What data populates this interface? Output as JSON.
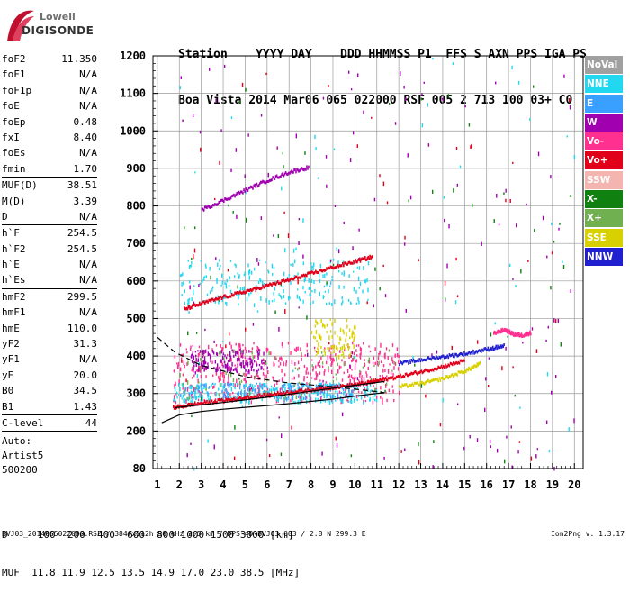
{
  "logo": {
    "line1": "Lowell",
    "line2": "DIGISONDE"
  },
  "header": {
    "row1": "Station    YYYY DAY    DDD HHMMSS P1  FFS S AXN PPS IGA PS",
    "row2": "Boa Vista 2014 Mar06 065 022000 RSF 005 2 713 100 03+ C0"
  },
  "params": [
    {
      "k": "foF2",
      "v": "11.350"
    },
    {
      "k": "foF1",
      "v": "N/A"
    },
    {
      "k": "foF1p",
      "v": "N/A"
    },
    {
      "k": "foE",
      "v": "N/A"
    },
    {
      "k": "foEp",
      "v": "0.48"
    },
    {
      "k": "fxI",
      "v": "8.40"
    },
    {
      "k": "foEs",
      "v": "N/A"
    },
    {
      "k": "fmin",
      "v": "1.70",
      "sep": true
    },
    {
      "k": "MUF(D)",
      "v": "38.51"
    },
    {
      "k": "M(D)",
      "v": "3.39"
    },
    {
      "k": "D",
      "v": "N/A",
      "sep": true
    },
    {
      "k": "h`F",
      "v": "254.5"
    },
    {
      "k": "h`F2",
      "v": "254.5"
    },
    {
      "k": "h`E",
      "v": "N/A"
    },
    {
      "k": "h`Es",
      "v": "N/A",
      "sep": true
    },
    {
      "k": "hmF2",
      "v": "299.5"
    },
    {
      "k": "hmF1",
      "v": "N/A"
    },
    {
      "k": "hmE",
      "v": "110.0"
    },
    {
      "k": "yF2",
      "v": "31.3"
    },
    {
      "k": "yF1",
      "v": "N/A"
    },
    {
      "k": "yE",
      "v": "20.0"
    },
    {
      "k": "B0",
      "v": "34.5"
    },
    {
      "k": "B1",
      "v": "1.43",
      "sep": true
    },
    {
      "k": "C-level",
      "v": "44",
      "sep": true
    }
  ],
  "auto": {
    "line1": "Auto:",
    "line2": "Artist5",
    "line3": "500200"
  },
  "muf_table": {
    "d_row": "D     100  200  400  600  800 1000 1500 3000 [km]",
    "muf_row": "MUF  11.8 11.9 12.5 13.5 14.9 17.0 23.0 38.5 [MHz]"
  },
  "footer": {
    "left": "BVJ03_2014065022000.RSF / 384fx512h 50 kHz 2.5 km / DPS-4D BVJ03 003 / 2.8 N 299.3 E",
    "right": "Ion2Png v. 1.3.17"
  },
  "legend": [
    {
      "label": "NoVal",
      "color": "#a0a0a0"
    },
    {
      "label": "NNE",
      "color": "#22d8f0"
    },
    {
      "label": "E",
      "color": "#3aa0ff"
    },
    {
      "label": "W",
      "color": "#a000b0"
    },
    {
      "label": "Vo-",
      "color": "#ff3090"
    },
    {
      "label": "Vo+",
      "color": "#e0001a"
    },
    {
      "label": "SSW",
      "color": "#f4b4b0"
    },
    {
      "label": "X-",
      "color": "#108010"
    },
    {
      "label": "X+",
      "color": "#70b050"
    },
    {
      "label": "SSE",
      "color": "#d8d000"
    },
    {
      "label": "NNW",
      "color": "#2020d0"
    }
  ],
  "chart_data": {
    "type": "scatter",
    "x_ticks": [
      "1",
      "2",
      "3",
      "4",
      "5",
      "6",
      "7",
      "8",
      "9",
      "10",
      "11",
      "12",
      "13",
      "14",
      "15",
      "16",
      "17",
      "18",
      "19",
      "20"
    ],
    "y_ticks": [
      "80",
      "200",
      "300",
      "400",
      "500",
      "600",
      "700",
      "800",
      "900",
      "1000",
      "1100",
      "1200"
    ],
    "xlim": [
      0.8,
      20.4
    ],
    "ylim": [
      80,
      1200
    ],
    "grid": true,
    "legend_position": "right",
    "y_tick_values": [
      80,
      200,
      300,
      400,
      500,
      600,
      700,
      800,
      900,
      1000,
      1100,
      1200
    ],
    "traces": [
      {
        "name": "Vo+",
        "color": "#e0001a",
        "points": [
          [
            1.7,
            262
          ],
          [
            2.5,
            270
          ],
          [
            3.5,
            278
          ],
          [
            4.5,
            285
          ],
          [
            5.5,
            292
          ],
          [
            6.5,
            300
          ],
          [
            7.5,
            306
          ],
          [
            8.5,
            313
          ],
          [
            9.5,
            320
          ],
          [
            10.5,
            328
          ],
          [
            11.0,
            334
          ],
          [
            12.0,
            345
          ],
          [
            13.0,
            358
          ],
          [
            14.0,
            372
          ],
          [
            15.0,
            388
          ]
        ]
      },
      {
        "name": "Vo+",
        "color": "#e0001a",
        "points": [
          [
            2.2,
            525
          ],
          [
            3,
            540
          ],
          [
            4,
            557
          ],
          [
            5,
            572
          ],
          [
            6,
            588
          ],
          [
            7,
            603
          ],
          [
            8,
            620
          ],
          [
            9,
            637
          ],
          [
            10,
            652
          ],
          [
            10.8,
            665
          ]
        ]
      },
      {
        "name": "W",
        "color": "#a000b0",
        "points": [
          [
            3.0,
            790
          ],
          [
            4,
            815
          ],
          [
            5,
            842
          ],
          [
            6,
            868
          ],
          [
            7,
            890
          ],
          [
            7.9,
            903
          ]
        ]
      },
      {
        "name": "NNW",
        "color": "#2020d0",
        "points": [
          [
            12.0,
            380
          ],
          [
            13,
            390
          ],
          [
            14,
            398
          ],
          [
            15,
            406
          ],
          [
            16,
            418
          ],
          [
            16.8,
            427
          ]
        ]
      },
      {
        "name": "SSE",
        "color": "#d8d000",
        "points": [
          [
            12.0,
            318
          ],
          [
            13,
            327
          ],
          [
            14,
            340
          ],
          [
            15,
            360
          ],
          [
            15.7,
            380
          ]
        ]
      },
      {
        "name": "Vo-",
        "color": "#ff3090",
        "points": [
          [
            16.3,
            460
          ],
          [
            16.8,
            470
          ],
          [
            17.2,
            458
          ],
          [
            17.6,
            455
          ],
          [
            18.0,
            462
          ]
        ]
      }
    ],
    "clusters": [
      {
        "name": "Vo-",
        "color": "#ff3090",
        "x": [
          1.7,
          12
        ],
        "y": [
          280,
          440
        ],
        "n": 500
      },
      {
        "name": "NNE",
        "color": "#22d8f0",
        "x": [
          1.7,
          11
        ],
        "y": [
          280,
          330
        ],
        "n": 300
      },
      {
        "name": "E",
        "color": "#3aa0ff",
        "x": [
          2,
          10
        ],
        "y": [
          290,
          330
        ],
        "n": 150
      },
      {
        "name": "W",
        "color": "#a000b0",
        "x": [
          2.5,
          6
        ],
        "y": [
          360,
          420
        ],
        "n": 150
      },
      {
        "name": "SSE",
        "color": "#d8d000",
        "x": [
          8,
          10
        ],
        "y": [
          400,
          500
        ],
        "n": 90
      },
      {
        "name": "NNE",
        "color": "#22d8f0",
        "x": [
          2,
          10.6
        ],
        "y": [
          540,
          660
        ],
        "n": 220
      },
      {
        "name": "X+",
        "color": "#70b050",
        "x": [
          2,
          12
        ],
        "y": [
          290,
          420
        ],
        "n": 80
      },
      {
        "name": "W",
        "color": "#a000b0",
        "x": [
          2,
          20
        ],
        "y": [
          80,
          1200
        ],
        "n": 140
      },
      {
        "name": "Vo+",
        "color": "#e0001a",
        "x": [
          2,
          20
        ],
        "y": [
          80,
          1200
        ],
        "n": 60
      },
      {
        "name": "X-",
        "color": "#108010",
        "x": [
          2,
          20
        ],
        "y": [
          80,
          1200
        ],
        "n": 60
      },
      {
        "name": "NNE",
        "color": "#22d8f0",
        "x": [
          2,
          20
        ],
        "y": [
          80,
          1200
        ],
        "n": 50
      }
    ],
    "curves": [
      {
        "name": "profile",
        "color": "#000000",
        "points": [
          [
            1.2,
            222
          ],
          [
            2,
            243
          ],
          [
            3,
            252
          ],
          [
            4,
            258
          ],
          [
            5,
            263
          ],
          [
            6,
            268
          ],
          [
            7,
            273
          ],
          [
            8,
            279
          ],
          [
            9,
            285
          ],
          [
            10,
            293
          ],
          [
            11,
            300
          ],
          [
            11.35,
            302
          ]
        ]
      },
      {
        "name": "trace-fit",
        "color": "#000000",
        "points": [
          [
            1.8,
            262
          ],
          [
            4,
            276
          ],
          [
            6,
            290
          ],
          [
            8,
            306
          ],
          [
            10,
            322
          ],
          [
            11.35,
            332
          ]
        ]
      },
      {
        "name": "profile-top",
        "color": "#000000",
        "dash": true,
        "points": [
          [
            1.0,
            450
          ],
          [
            1.8,
            410
          ],
          [
            3,
            375
          ],
          [
            5,
            345
          ],
          [
            7,
            328
          ],
          [
            9,
            318
          ],
          [
            11,
            305
          ],
          [
            11.35,
            302
          ]
        ]
      }
    ]
  }
}
